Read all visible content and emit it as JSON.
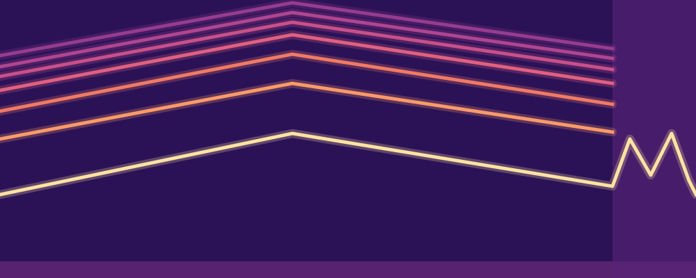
{
  "chart_data": {
    "type": "line",
    "xlim": [
      0,
      100
    ],
    "ylim": [
      0,
      100
    ],
    "tick_labels": false,
    "grid": false,
    "series": [
      {
        "color": "#fde2a3",
        "x": [
          0,
          42,
          88,
          90.5,
          93.5,
          96.5,
          99,
          100
        ],
        "values": [
          30,
          52,
          33,
          50,
          37,
          52,
          35,
          30
        ]
      },
      {
        "color": "#fb9a6a",
        "x": [
          0,
          42,
          88
        ],
        "values": [
          50,
          70,
          52.5
        ]
      },
      {
        "color": "#f07a66",
        "x": [
          0,
          42,
          88
        ],
        "values": [
          60,
          80.5,
          62.5
        ]
      },
      {
        "color": "#e06080",
        "x": [
          0,
          42,
          88
        ],
        "values": [
          67.5,
          87.5,
          70
        ]
      },
      {
        "color": "#c8508a",
        "x": [
          0,
          42,
          88
        ],
        "values": [
          72.5,
          92,
          75
        ]
      },
      {
        "color": "#b04590",
        "x": [
          0,
          42,
          88
        ],
        "values": [
          76,
          95.5,
          79
        ]
      },
      {
        "color": "#963c8e",
        "x": [
          0,
          42,
          88
        ],
        "values": [
          80,
          99,
          82.5
        ]
      }
    ]
  }
}
